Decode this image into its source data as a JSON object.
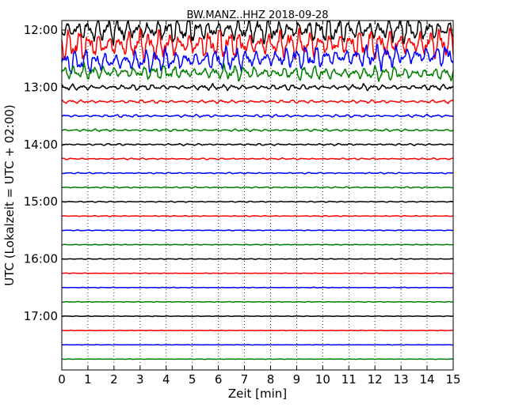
{
  "chart_data": {
    "type": "line",
    "title": "BW.MANZ..HHZ 2018-09-28",
    "xlabel": "Zeit  [min]",
    "ylabel": "UTC (Lokalzeit = UTC + 02:00)",
    "xlim": [
      0,
      15
    ],
    "x_ticks": [
      "0",
      "1",
      "2",
      "3",
      "4",
      "5",
      "6",
      "7",
      "8",
      "9",
      "10",
      "11",
      "12",
      "13",
      "14",
      "15"
    ],
    "y_ticks": [
      "12:00",
      "13:00",
      "14:00",
      "15:00",
      "16:00",
      "17:00"
    ],
    "vertical_grid": "dotted",
    "trace_colors": [
      "#000000",
      "#ff0000",
      "#0000ff",
      "#008000"
    ],
    "trace_interval_minutes": 15,
    "traces": [
      {
        "start": "12:00",
        "amplitude": 1.0,
        "trend": 0.0
      },
      {
        "start": "12:15",
        "amplitude": 1.15,
        "trend": 0.2
      },
      {
        "start": "12:30",
        "amplitude": 0.9,
        "trend": 0.9
      },
      {
        "start": "12:45",
        "amplitude": 0.55,
        "trend": -0.2
      },
      {
        "start": "13:00",
        "amplitude": 0.22,
        "trend": 0.0
      },
      {
        "start": "13:15",
        "amplitude": 0.12,
        "trend": 0.0
      },
      {
        "start": "13:30",
        "amplitude": 0.1,
        "trend": 0.0
      },
      {
        "start": "13:45",
        "amplitude": 0.09,
        "trend": 0.0
      },
      {
        "start": "14:00",
        "amplitude": 0.07,
        "trend": 0.0
      },
      {
        "start": "14:15",
        "amplitude": 0.06,
        "trend": 0.0
      },
      {
        "start": "14:30",
        "amplitude": 0.05,
        "trend": 0.0
      },
      {
        "start": "14:45",
        "amplitude": 0.05,
        "trend": 0.0
      },
      {
        "start": "15:00",
        "amplitude": 0.04,
        "trend": 0.0
      },
      {
        "start": "15:15",
        "amplitude": 0.035,
        "trend": 0.0
      },
      {
        "start": "15:30",
        "amplitude": 0.03,
        "trend": 0.0
      },
      {
        "start": "15:45",
        "amplitude": 0.03,
        "trend": 0.0
      },
      {
        "start": "16:00",
        "amplitude": 0.03,
        "trend": 0.0
      },
      {
        "start": "16:15",
        "amplitude": 0.025,
        "trend": 0.0
      },
      {
        "start": "16:30",
        "amplitude": 0.025,
        "trend": 0.0
      },
      {
        "start": "16:45",
        "amplitude": 0.025,
        "trend": 0.0
      },
      {
        "start": "17:00",
        "amplitude": 0.025,
        "trend": 0.0
      },
      {
        "start": "17:15",
        "amplitude": 0.02,
        "trend": 0.0
      },
      {
        "start": "17:30",
        "amplitude": 0.02,
        "trend": 0.0
      },
      {
        "start": "17:45",
        "amplitude": 0.02,
        "trend": 0.0
      }
    ]
  }
}
